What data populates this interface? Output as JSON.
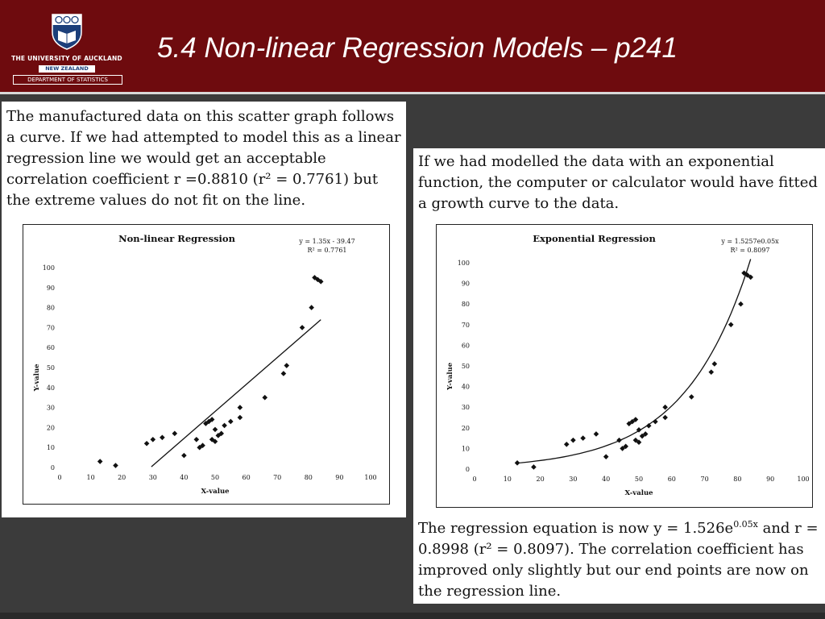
{
  "header": {
    "university": "THE UNIVERSITY OF AUCKLAND",
    "country": "NEW ZEALAND",
    "department": "DEPARTMENT OF STATISTICS",
    "title": "5.4 Non-linear Regression Models – p241"
  },
  "left_panel": {
    "text": "The manufactured data on this scatter graph follows a curve.  If we had attempted to model this as a linear regression line we would get an acceptable correlation coefficient r =0.8810 (r² = 0.7761) but the extreme values do not fit on the line."
  },
  "right_panel": {
    "text_top": "If we had modelled the data with an exponential function, the computer or calculator would have fitted a growth curve to the data.",
    "text_bottom_pre": "The regression equation is now y = 1.526e",
    "text_bottom_sup": "0.05x",
    "text_bottom_post": " and r = 0.8998 (r² = 0.8097).  The correlation coefficient has improved only slightly but our end points are now on the regression line."
  },
  "chart_data": [
    {
      "type": "scatter",
      "title": "Non-linear Regression",
      "equation": "y = 1.35x - 39.47",
      "r2_label": "R² = 0.7761",
      "xlabel": "X-value",
      "ylabel": "Y-value",
      "xlim": [
        0,
        100
      ],
      "ylim": [
        0,
        100
      ],
      "xticks": [
        "0",
        "10",
        "20",
        "30",
        "40",
        "50",
        "60",
        "70",
        "80",
        "90",
        "100"
      ],
      "yticks": [
        "0",
        "10",
        "20",
        "30",
        "40",
        "50",
        "60",
        "70",
        "80",
        "90",
        "100"
      ],
      "points": [
        {
          "x": 13,
          "y": 3
        },
        {
          "x": 18,
          "y": 1
        },
        {
          "x": 28,
          "y": 12
        },
        {
          "x": 30,
          "y": 14
        },
        {
          "x": 33,
          "y": 15
        },
        {
          "x": 37,
          "y": 17
        },
        {
          "x": 40,
          "y": 6
        },
        {
          "x": 44,
          "y": 14
        },
        {
          "x": 45,
          "y": 10
        },
        {
          "x": 46,
          "y": 11
        },
        {
          "x": 47,
          "y": 22
        },
        {
          "x": 48,
          "y": 23
        },
        {
          "x": 49,
          "y": 24
        },
        {
          "x": 49,
          "y": 14
        },
        {
          "x": 50,
          "y": 13
        },
        {
          "x": 50,
          "y": 19
        },
        {
          "x": 51,
          "y": 16
        },
        {
          "x": 52,
          "y": 17
        },
        {
          "x": 53,
          "y": 21
        },
        {
          "x": 55,
          "y": 23
        },
        {
          "x": 58,
          "y": 25
        },
        {
          "x": 58,
          "y": 30
        },
        {
          "x": 66,
          "y": 35
        },
        {
          "x": 72,
          "y": 47
        },
        {
          "x": 73,
          "y": 51
        },
        {
          "x": 78,
          "y": 70
        },
        {
          "x": 81,
          "y": 80
        },
        {
          "x": 82,
          "y": 95
        },
        {
          "x": 83,
          "y": 94
        },
        {
          "x": 84,
          "y": 93
        }
      ],
      "fit": {
        "kind": "linear",
        "a": -39.47,
        "b": 1.35,
        "x_from": 29.5,
        "x_to": 84
      }
    },
    {
      "type": "scatter",
      "title": "Exponential Regression",
      "equation": "y = 1.5257e0.05x",
      "r2_label": "R² = 0.8097",
      "xlabel": "X-value",
      "ylabel": "Y-value",
      "xlim": [
        0,
        100
      ],
      "ylim": [
        0,
        100
      ],
      "xticks": [
        "0",
        "10",
        "20",
        "30",
        "40",
        "50",
        "60",
        "70",
        "80",
        "90",
        "100"
      ],
      "yticks": [
        "0",
        "10",
        "20",
        "30",
        "40",
        "50",
        "60",
        "70",
        "80",
        "90",
        "100"
      ],
      "points": [
        {
          "x": 13,
          "y": 3
        },
        {
          "x": 18,
          "y": 1
        },
        {
          "x": 28,
          "y": 12
        },
        {
          "x": 30,
          "y": 14
        },
        {
          "x": 33,
          "y": 15
        },
        {
          "x": 37,
          "y": 17
        },
        {
          "x": 40,
          "y": 6
        },
        {
          "x": 44,
          "y": 14
        },
        {
          "x": 45,
          "y": 10
        },
        {
          "x": 46,
          "y": 11
        },
        {
          "x": 47,
          "y": 22
        },
        {
          "x": 48,
          "y": 23
        },
        {
          "x": 49,
          "y": 24
        },
        {
          "x": 49,
          "y": 14
        },
        {
          "x": 50,
          "y": 13
        },
        {
          "x": 50,
          "y": 19
        },
        {
          "x": 51,
          "y": 16
        },
        {
          "x": 52,
          "y": 17
        },
        {
          "x": 53,
          "y": 21
        },
        {
          "x": 55,
          "y": 23
        },
        {
          "x": 58,
          "y": 25
        },
        {
          "x": 58,
          "y": 30
        },
        {
          "x": 66,
          "y": 35
        },
        {
          "x": 72,
          "y": 47
        },
        {
          "x": 73,
          "y": 51
        },
        {
          "x": 78,
          "y": 70
        },
        {
          "x": 81,
          "y": 80
        },
        {
          "x": 82,
          "y": 95
        },
        {
          "x": 83,
          "y": 94
        },
        {
          "x": 84,
          "y": 93
        }
      ],
      "fit": {
        "kind": "exponential",
        "a": 1.526,
        "b": 0.05,
        "x_from": 13,
        "x_to": 84
      }
    }
  ],
  "colors": {
    "header_bg": "#6e0b0e",
    "slide_bg": "#3b3b3b",
    "crest_blue": "#1c3f7a"
  }
}
